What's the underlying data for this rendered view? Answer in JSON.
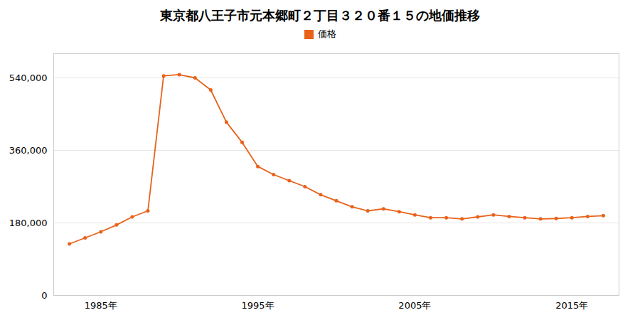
{
  "chart_data": {
    "type": "line",
    "title": "東京都八王子市元本郷町２丁目３２０番１５の地価推移",
    "x": [
      1983,
      1984,
      1985,
      1986,
      1987,
      1988,
      1989,
      1990,
      1991,
      1992,
      1993,
      1994,
      1995,
      1996,
      1997,
      1998,
      1999,
      2000,
      2001,
      2002,
      2003,
      2004,
      2005,
      2006,
      2007,
      2008,
      2009,
      2010,
      2011,
      2012,
      2013,
      2014,
      2015,
      2016,
      2017
    ],
    "series": [
      {
        "name": "価格",
        "color": "#e8621a",
        "marker": "circle",
        "values": [
          128000,
          143000,
          158000,
          175000,
          195000,
          210000,
          545000,
          548000,
          540000,
          510000,
          430000,
          380000,
          320000,
          300000,
          285000,
          270000,
          250000,
          235000,
          220000,
          210000,
          215000,
          208000,
          200000,
          193000,
          193000,
          190000,
          195000,
          200000,
          196000,
          193000,
          190000,
          191000,
          193000,
          196000,
          198000
        ]
      }
    ],
    "xlim": [
      1982,
      2018
    ],
    "xticks": [
      {
        "value": 1985,
        "label": "1985年"
      },
      {
        "value": 1995,
        "label": "1995年"
      },
      {
        "value": 2005,
        "label": "2005年"
      },
      {
        "value": 2015,
        "label": "2015年"
      }
    ],
    "ylim": [
      0,
      600000
    ],
    "yticks": [
      0,
      {
        "value": 180000,
        "label": "180,000"
      },
      {
        "value": 360000,
        "label": "360,000"
      },
      {
        "value": 540000,
        "label": "540,000"
      }
    ],
    "grid": "y",
    "legend": "top"
  }
}
